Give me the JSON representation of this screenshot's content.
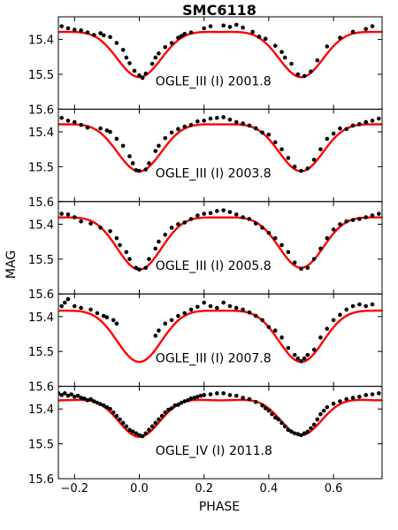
{
  "chart_data": {
    "type": "scatter",
    "title": "SMC6118",
    "xlabel": "PHASE",
    "ylabel": "MAG",
    "xlim": [
      -0.25,
      0.75
    ],
    "ylim": [
      15.6,
      15.335
    ],
    "y_inverted": true,
    "grid": false,
    "x_ticks": [
      -0.2,
      0.0,
      0.2,
      0.4,
      0.6
    ],
    "x_tick_labels": [
      "−0.2",
      "0.0",
      "0.2",
      "0.4",
      "0.6"
    ],
    "y_ticks": [
      15.4,
      15.5,
      15.6
    ],
    "y_tick_labels": [
      "15.4",
      "15.5",
      "15.6"
    ],
    "colors": {
      "points": "#000000",
      "model": "#ff0000",
      "frame": "#000000"
    },
    "panels": [
      {
        "label": "OGLE_III (I) 2001.8",
        "model": {
          "max_mag": 15.358,
          "primary_depth": 0.15,
          "secondary_depth": 0.15,
          "primary_width": 0.07,
          "secondary_width": 0.07,
          "slope": 0.04
        },
        "points": [
          [
            -0.24,
            15.362
          ],
          [
            -0.22,
            15.368
          ],
          [
            -0.2,
            15.372
          ],
          [
            -0.18,
            15.374
          ],
          [
            -0.16,
            15.38
          ],
          [
            -0.14,
            15.387
          ],
          [
            -0.12,
            15.382
          ],
          [
            -0.11,
            15.388
          ],
          [
            -0.09,
            15.393
          ],
          [
            -0.07,
            15.41
          ],
          [
            -0.05,
            15.43
          ],
          [
            -0.04,
            15.452
          ],
          [
            -0.03,
            15.468
          ],
          [
            -0.015,
            15.49
          ],
          [
            0.0,
            15.503
          ],
          [
            0.01,
            15.51
          ],
          [
            0.02,
            15.498
          ],
          [
            0.04,
            15.47
          ],
          [
            0.05,
            15.452
          ],
          [
            0.06,
            15.44
          ],
          [
            0.08,
            15.422
          ],
          [
            0.1,
            15.41
          ],
          [
            0.12,
            15.395
          ],
          [
            0.13,
            15.39
          ],
          [
            0.14,
            15.384
          ],
          [
            0.16,
            15.38
          ],
          [
            0.2,
            15.368
          ],
          [
            0.22,
            15.362
          ],
          [
            0.26,
            15.36
          ],
          [
            0.28,
            15.364
          ],
          [
            0.3,
            15.358
          ],
          [
            0.32,
            15.366
          ],
          [
            0.35,
            15.378
          ],
          [
            0.37,
            15.392
          ],
          [
            0.39,
            15.398
          ],
          [
            0.42,
            15.418
          ],
          [
            0.44,
            15.436
          ],
          [
            0.45,
            15.452
          ],
          [
            0.47,
            15.47
          ],
          [
            0.49,
            15.5
          ],
          [
            0.51,
            15.505
          ],
          [
            0.53,
            15.492
          ],
          [
            0.55,
            15.46
          ],
          [
            0.58,
            15.42
          ],
          [
            0.62,
            15.395
          ],
          [
            0.66,
            15.378
          ],
          [
            0.7,
            15.37
          ],
          [
            0.72,
            15.362
          ]
        ]
      },
      {
        "label": "OGLE_III (I) 2003.8",
        "model": {
          "max_mag": 15.358,
          "primary_depth": 0.155,
          "secondary_depth": 0.155,
          "primary_width": 0.07,
          "secondary_width": 0.07,
          "slope": 0.04
        },
        "points": [
          [
            -0.24,
            15.36
          ],
          [
            -0.22,
            15.368
          ],
          [
            -0.2,
            15.372
          ],
          [
            -0.18,
            15.38
          ],
          [
            -0.16,
            15.388
          ],
          [
            -0.12,
            15.39
          ],
          [
            -0.1,
            15.396
          ],
          [
            -0.09,
            15.4
          ],
          [
            -0.07,
            15.42
          ],
          [
            -0.05,
            15.44
          ],
          [
            -0.03,
            15.47
          ],
          [
            -0.02,
            15.49
          ],
          [
            -0.01,
            15.51
          ],
          [
            0.0,
            15.512
          ],
          [
            0.02,
            15.508
          ],
          [
            0.03,
            15.49
          ],
          [
            0.05,
            15.455
          ],
          [
            0.06,
            15.44
          ],
          [
            0.08,
            15.418
          ],
          [
            0.1,
            15.402
          ],
          [
            0.12,
            15.392
          ],
          [
            0.14,
            15.385
          ],
          [
            0.16,
            15.38
          ],
          [
            0.18,
            15.37
          ],
          [
            0.2,
            15.368
          ],
          [
            0.22,
            15.362
          ],
          [
            0.24,
            15.36
          ],
          [
            0.26,
            15.358
          ],
          [
            0.28,
            15.365
          ],
          [
            0.3,
            15.372
          ],
          [
            0.32,
            15.376
          ],
          [
            0.34,
            15.382
          ],
          [
            0.36,
            15.39
          ],
          [
            0.38,
            15.402
          ],
          [
            0.4,
            15.408
          ],
          [
            0.42,
            15.43
          ],
          [
            0.44,
            15.45
          ],
          [
            0.46,
            15.475
          ],
          [
            0.48,
            15.5
          ],
          [
            0.5,
            15.512
          ],
          [
            0.52,
            15.505
          ],
          [
            0.54,
            15.48
          ],
          [
            0.56,
            15.45
          ],
          [
            0.58,
            15.42
          ],
          [
            0.6,
            15.405
          ],
          [
            0.62,
            15.39
          ],
          [
            0.64,
            15.392
          ],
          [
            0.66,
            15.382
          ],
          [
            0.68,
            15.378
          ],
          [
            0.7,
            15.372
          ],
          [
            0.72,
            15.368
          ],
          [
            0.74,
            15.362
          ]
        ]
      },
      {
        "label": "OGLE_III (I) 2005.8",
        "model": {
          "max_mag": 15.36,
          "primary_depth": 0.17,
          "secondary_depth": 0.165,
          "primary_width": 0.07,
          "secondary_width": 0.07,
          "slope": 0.04
        },
        "points": [
          [
            -0.24,
            15.37
          ],
          [
            -0.22,
            15.372
          ],
          [
            -0.2,
            15.38
          ],
          [
            -0.18,
            15.392
          ],
          [
            -0.15,
            15.398
          ],
          [
            -0.12,
            15.41
          ],
          [
            -0.09,
            15.42
          ],
          [
            -0.07,
            15.44
          ],
          [
            -0.06,
            15.46
          ],
          [
            -0.04,
            15.48
          ],
          [
            -0.03,
            15.5
          ],
          [
            -0.01,
            15.525
          ],
          [
            0.0,
            15.53
          ],
          [
            0.02,
            15.525
          ],
          [
            0.03,
            15.5
          ],
          [
            0.05,
            15.47
          ],
          [
            0.06,
            15.45
          ],
          [
            0.08,
            15.43
          ],
          [
            0.1,
            15.41
          ],
          [
            0.12,
            15.4
          ],
          [
            0.14,
            15.395
          ],
          [
            0.16,
            15.385
          ],
          [
            0.18,
            15.375
          ],
          [
            0.2,
            15.37
          ],
          [
            0.22,
            15.368
          ],
          [
            0.24,
            15.362
          ],
          [
            0.26,
            15.36
          ],
          [
            0.28,
            15.365
          ],
          [
            0.3,
            15.372
          ],
          [
            0.32,
            15.38
          ],
          [
            0.34,
            15.385
          ],
          [
            0.36,
            15.398
          ],
          [
            0.38,
            15.41
          ],
          [
            0.4,
            15.425
          ],
          [
            0.42,
            15.44
          ],
          [
            0.44,
            15.46
          ],
          [
            0.46,
            15.48
          ],
          [
            0.48,
            15.51
          ],
          [
            0.5,
            15.528
          ],
          [
            0.52,
            15.525
          ],
          [
            0.54,
            15.5
          ],
          [
            0.56,
            15.47
          ],
          [
            0.58,
            15.44
          ],
          [
            0.6,
            15.415
          ],
          [
            0.62,
            15.4
          ],
          [
            0.64,
            15.392
          ],
          [
            0.66,
            15.388
          ],
          [
            0.68,
            15.385
          ],
          [
            0.7,
            15.38
          ],
          [
            0.72,
            15.375
          ],
          [
            0.74,
            15.37
          ]
        ]
      },
      {
        "label": "OGLE_III (I) 2007.8",
        "model": {
          "max_mag": 15.365,
          "primary_depth": 0.165,
          "secondary_depth": 0.165,
          "primary_width": 0.07,
          "secondary_width": 0.07,
          "slope": 0.035
        },
        "points": [
          [
            -0.24,
            15.37
          ],
          [
            -0.23,
            15.36
          ],
          [
            -0.22,
            15.35
          ],
          [
            -0.2,
            15.37
          ],
          [
            -0.18,
            15.375
          ],
          [
            -0.15,
            15.38
          ],
          [
            -0.13,
            15.39
          ],
          [
            -0.11,
            15.398
          ],
          [
            -0.1,
            15.402
          ],
          [
            -0.08,
            15.41
          ],
          [
            -0.07,
            15.42
          ],
          [
            0.05,
            15.455
          ],
          [
            0.06,
            15.44
          ],
          [
            0.08,
            15.42
          ],
          [
            0.1,
            15.41
          ],
          [
            0.12,
            15.398
          ],
          [
            0.14,
            15.39
          ],
          [
            0.16,
            15.38
          ],
          [
            0.18,
            15.372
          ],
          [
            0.2,
            15.36
          ],
          [
            0.22,
            15.37
          ],
          [
            0.24,
            15.375
          ],
          [
            0.26,
            15.36
          ],
          [
            0.28,
            15.37
          ],
          [
            0.3,
            15.375
          ],
          [
            0.32,
            15.38
          ],
          [
            0.34,
            15.388
          ],
          [
            0.36,
            15.398
          ],
          [
            0.38,
            15.41
          ],
          [
            0.4,
            15.43
          ],
          [
            0.42,
            15.44
          ],
          [
            0.44,
            15.46
          ],
          [
            0.46,
            15.49
          ],
          [
            0.48,
            15.51
          ],
          [
            0.49,
            15.52
          ],
          [
            0.5,
            15.528
          ],
          [
            0.51,
            15.52
          ],
          [
            0.52,
            15.51
          ],
          [
            0.54,
            15.495
          ],
          [
            0.56,
            15.46
          ],
          [
            0.58,
            15.435
          ],
          [
            0.6,
            15.41
          ],
          [
            0.62,
            15.395
          ],
          [
            0.64,
            15.38
          ],
          [
            0.66,
            15.37
          ],
          [
            0.68,
            15.365
          ],
          [
            0.7,
            15.37
          ],
          [
            0.72,
            15.365
          ]
        ]
      },
      {
        "label": "OGLE_IV (I) 2011.8",
        "model": {
          "max_mag": 15.355,
          "primary_depth": 0.125,
          "secondary_depth": 0.12,
          "primary_width": 0.065,
          "secondary_width": 0.065,
          "slope": 0.04
        },
        "points": [
          [
            -0.25,
            15.355
          ],
          [
            -0.24,
            15.36
          ],
          [
            -0.23,
            15.355
          ],
          [
            -0.22,
            15.362
          ],
          [
            -0.21,
            15.358
          ],
          [
            -0.2,
            15.365
          ],
          [
            -0.19,
            15.362
          ],
          [
            -0.18,
            15.368
          ],
          [
            -0.17,
            15.37
          ],
          [
            -0.16,
            15.375
          ],
          [
            -0.15,
            15.372
          ],
          [
            -0.14,
            15.378
          ],
          [
            -0.13,
            15.382
          ],
          [
            -0.12,
            15.386
          ],
          [
            -0.11,
            15.39
          ],
          [
            -0.1,
            15.395
          ],
          [
            -0.09,
            15.4
          ],
          [
            -0.08,
            15.41
          ],
          [
            -0.07,
            15.42
          ],
          [
            -0.06,
            15.43
          ],
          [
            -0.05,
            15.44
          ],
          [
            -0.04,
            15.45
          ],
          [
            -0.03,
            15.46
          ],
          [
            -0.02,
            15.465
          ],
          [
            -0.01,
            15.47
          ],
          [
            0.0,
            15.475
          ],
          [
            0.01,
            15.478
          ],
          [
            0.02,
            15.47
          ],
          [
            0.03,
            15.46
          ],
          [
            0.04,
            15.45
          ],
          [
            0.05,
            15.44
          ],
          [
            0.06,
            15.43
          ],
          [
            0.07,
            15.42
          ],
          [
            0.08,
            15.41
          ],
          [
            0.09,
            15.402
          ],
          [
            0.1,
            15.398
          ],
          [
            0.11,
            15.39
          ],
          [
            0.12,
            15.388
          ],
          [
            0.13,
            15.382
          ],
          [
            0.14,
            15.378
          ],
          [
            0.15,
            15.375
          ],
          [
            0.16,
            15.37
          ],
          [
            0.17,
            15.368
          ],
          [
            0.18,
            15.365
          ],
          [
            0.19,
            15.362
          ],
          [
            0.2,
            15.36
          ],
          [
            0.22,
            15.358
          ],
          [
            0.24,
            15.355
          ],
          [
            0.26,
            15.355
          ],
          [
            0.28,
            15.36
          ],
          [
            0.3,
            15.362
          ],
          [
            0.32,
            15.368
          ],
          [
            0.34,
            15.372
          ],
          [
            0.36,
            15.38
          ],
          [
            0.38,
            15.39
          ],
          [
            0.39,
            15.398
          ],
          [
            0.4,
            15.405
          ],
          [
            0.41,
            15.415
          ],
          [
            0.42,
            15.425
          ],
          [
            0.43,
            15.43
          ],
          [
            0.44,
            15.44
          ],
          [
            0.45,
            15.45
          ],
          [
            0.46,
            15.46
          ],
          [
            0.47,
            15.465
          ],
          [
            0.48,
            15.47
          ],
          [
            0.49,
            15.472
          ],
          [
            0.5,
            15.475
          ],
          [
            0.51,
            15.47
          ],
          [
            0.52,
            15.465
          ],
          [
            0.53,
            15.455
          ],
          [
            0.54,
            15.445
          ],
          [
            0.55,
            15.43
          ],
          [
            0.56,
            15.415
          ],
          [
            0.57,
            15.405
          ],
          [
            0.58,
            15.395
          ],
          [
            0.6,
            15.385
          ],
          [
            0.62,
            15.378
          ],
          [
            0.64,
            15.372
          ],
          [
            0.66,
            15.368
          ],
          [
            0.68,
            15.365
          ],
          [
            0.7,
            15.36
          ],
          [
            0.72,
            15.358
          ],
          [
            0.74,
            15.355
          ]
        ]
      }
    ]
  }
}
